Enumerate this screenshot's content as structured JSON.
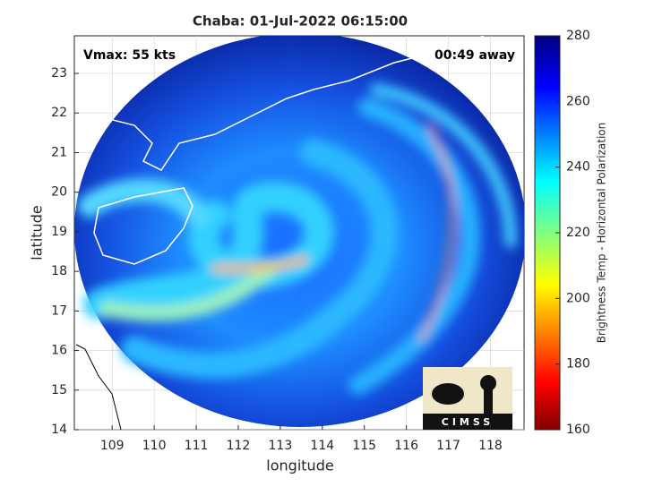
{
  "map": {
    "title": "Chaba: 01-Jul-2022 06:15:00",
    "annotations": [
      "Vmax: 55 kts",
      "00:49 away"
    ],
    "xlabel": "longitude",
    "ylabel": "latitude",
    "xlim": [
      108.1,
      118.8
    ],
    "ylim": [
      14,
      23.95
    ],
    "xticks": [
      109,
      110,
      111,
      112,
      113,
      114,
      115,
      116,
      117,
      118
    ],
    "yticks": [
      14,
      15,
      16,
      17,
      18,
      19,
      20,
      21,
      22,
      23
    ],
    "logo": "CIMSS"
  },
  "colorbar": {
    "label": "Brightness Temp - Horizontal Polarization",
    "lim": [
      160,
      280
    ],
    "ticks": [
      160,
      180,
      200,
      220,
      240,
      260,
      280
    ]
  }
}
